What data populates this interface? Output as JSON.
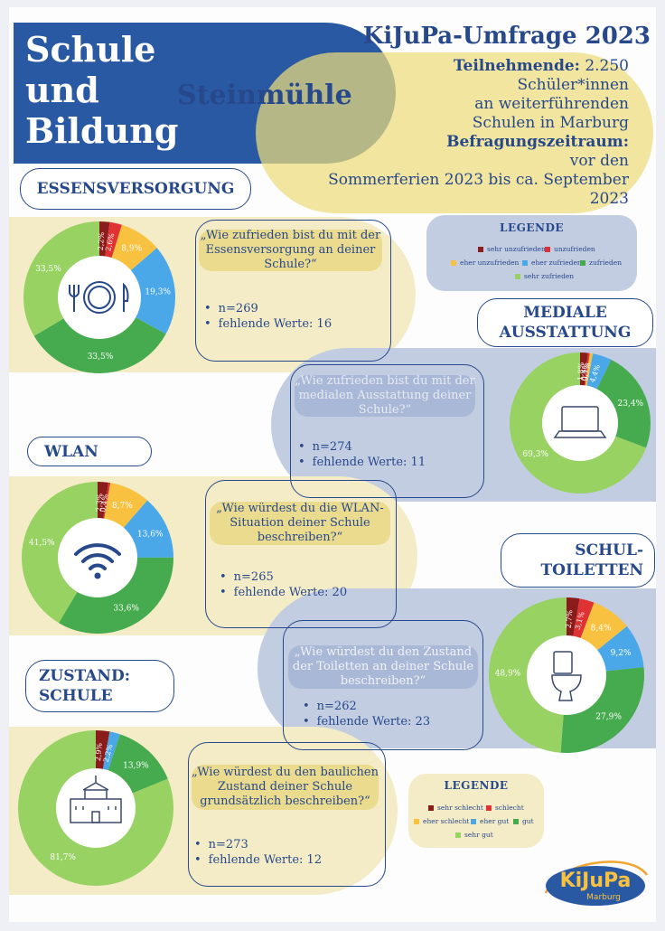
{
  "header": {
    "title_lines": [
      "Schule",
      "und",
      "Bildung"
    ],
    "location": "Steinmühle",
    "survey_title": "KiJuPa-Umfrage 2023",
    "participants_label": "Teilnehmende:",
    "participants_value": "2.250",
    "participants_line2": "Schüler*innen",
    "participants_line3": "an weiterführenden",
    "participants_line4": "Schulen in Marburg",
    "period_label": "Befragungszeitraum:",
    "period_line1": "vor den",
    "period_line2": "Sommerferien 2023 bis ca. September",
    "period_line3": "2023"
  },
  "legend_satisfaction": {
    "title": "LEGENDE",
    "items": [
      "sehr unzufrieden",
      "unzufrieden",
      "eher unzufrieden",
      "eher zufrieden",
      "zufrieden",
      "sehr zufrieden"
    ]
  },
  "legend_condition": {
    "title": "LEGENDE",
    "items": [
      "sehr schlecht",
      "schlecht",
      "eher schlecht",
      "eher gut",
      "gut",
      "sehr gut"
    ]
  },
  "colors": {
    "c1": "#8a1c1c",
    "c2": "#e03232",
    "c3": "#f8c240",
    "c4": "#4aa8e8",
    "c5": "#46ab4e",
    "c6": "#98d262",
    "title_blue": "#2a59a4",
    "band_yellow": "#f4ecc6",
    "band_blue": "#c2cde2",
    "oval_yellow": "#ebdb7a"
  },
  "sections": {
    "essen": {
      "label": "ESSENSVERSORGUNG",
      "question": "„Wie zufrieden bist du mit der Essensversorgung an deiner Schule?“",
      "n": "n=269",
      "missing": "fehlende Werte: 16",
      "icon": "plate-cutlery-icon"
    },
    "medien": {
      "label_line1": "MEDIALE",
      "label_line2": "AUSSTATTUNG",
      "question": "„Wie zufrieden bist du mit der medialen Ausstattung deiner Schule?“",
      "n": "n=274",
      "missing": "fehlende Werte: 11",
      "icon": "laptop-icon"
    },
    "wlan": {
      "label": "WLAN",
      "question": "„Wie würdest du die WLAN-Situation deiner Schule beschreiben?“",
      "n": "n=265",
      "missing": "fehlende Werte: 20",
      "icon": "wifi-icon"
    },
    "toiletten": {
      "label_line1": "SCHUL-",
      "label_line2": "TOILETTEN",
      "question": "„Wie würdest du den Zustand der Toiletten an deiner Schule beschreiben?“",
      "n": "n=262",
      "missing": "fehlende Werte: 23",
      "icon": "toilet-icon"
    },
    "zustand": {
      "label_line1": "ZUSTAND:",
      "label_line2": "SCHULE",
      "question": "„Wie würdest du den baulichen Zustand deiner Schule grundsätzlich beschreiben?“",
      "n": "n=273",
      "missing": "fehlende Werte: 12",
      "icon": "school-building-icon"
    }
  },
  "logo": {
    "main": "KiJuPa",
    "sub": "Marburg"
  },
  "chart_data": [
    {
      "type": "pie",
      "id": "essen",
      "categories": [
        "sehr unzufrieden",
        "unzufrieden",
        "eher unzufrieden",
        "eher zufrieden",
        "zufrieden",
        "sehr zufrieden"
      ],
      "values": [
        2.2,
        2.6,
        8.9,
        19.3,
        33.5,
        33.5
      ],
      "labels": [
        "2,2%",
        "2,6%",
        "8,9%",
        "19,3%",
        "33,5%",
        "33,5%"
      ]
    },
    {
      "type": "pie",
      "id": "medien",
      "categories": [
        "sehr unzufrieden",
        "unzufrieden",
        "eher unzufrieden",
        "eher zufrieden",
        "zufrieden",
        "sehr zufrieden"
      ],
      "values": [
        1.8,
        0.4,
        0.7,
        4.4,
        23.4,
        69.3
      ],
      "labels": [
        "1,8%",
        "0,4%",
        "0,7%",
        "4,4%",
        "23,4%",
        "69,3%"
      ]
    },
    {
      "type": "pie",
      "id": "wlan",
      "categories": [
        "sehr schlecht",
        "schlecht",
        "eher schlecht",
        "eher gut",
        "gut",
        "sehr gut"
      ],
      "values": [
        2.3,
        0.4,
        8.7,
        13.6,
        33.6,
        41.5
      ],
      "labels": [
        "2,3%",
        "0,4%",
        "8,7%",
        "13,6%",
        "33,6%",
        "41,5%"
      ]
    },
    {
      "type": "pie",
      "id": "toiletten",
      "categories": [
        "sehr schlecht",
        "schlecht",
        "eher schlecht",
        "eher gut",
        "gut",
        "sehr gut"
      ],
      "values": [
        2.7,
        3.1,
        8.4,
        9.2,
        27.9,
        48.9
      ],
      "labels": [
        "2,7%",
        "3,1%",
        "8,4%",
        "9,2%",
        "27,9%",
        "48,9%"
      ]
    },
    {
      "type": "pie",
      "id": "zustand",
      "categories": [
        "sehr schlecht",
        "schlecht",
        "eher schlecht",
        "eher gut",
        "gut",
        "sehr gut"
      ],
      "values": [
        2.9,
        0,
        0,
        2.2,
        13.9,
        81.7
      ],
      "labels": [
        "2,9%",
        "",
        "",
        "2,2%",
        "13,9%",
        "81,7%"
      ]
    }
  ]
}
